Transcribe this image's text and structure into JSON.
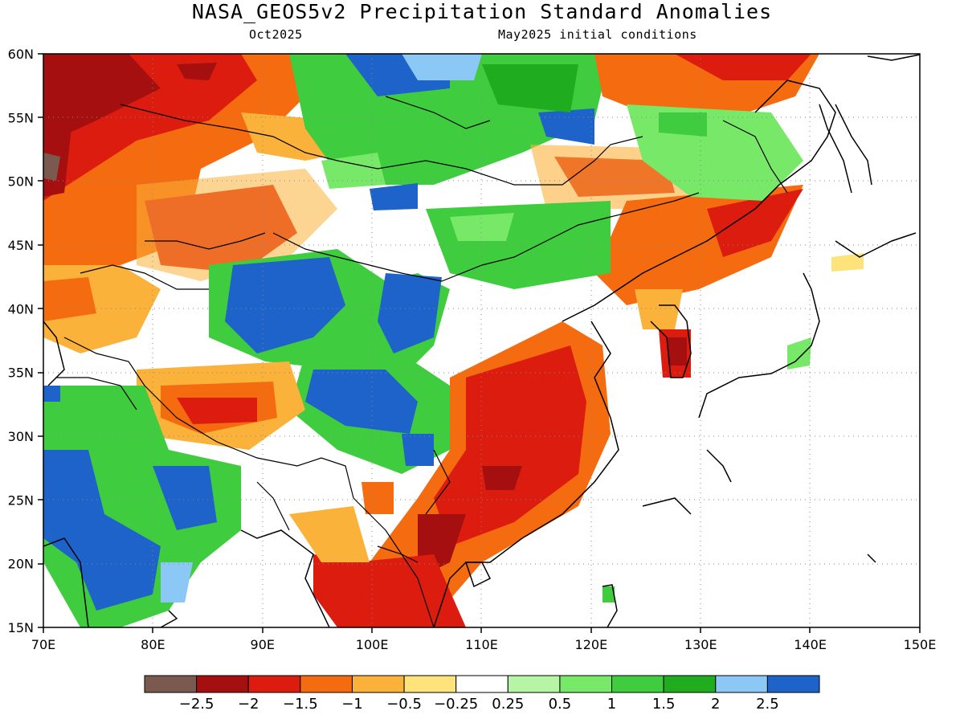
{
  "title": "NASA_GEOS5v2 Precipitation Standard Anomalies",
  "subtitle_left": "Oct2025",
  "subtitle_right": "May2025 initial conditions",
  "map": {
    "lon_range": [
      70,
      150
    ],
    "lat_range": [
      15,
      60
    ],
    "lon_ticks": [
      "70E",
      "80E",
      "90E",
      "100E",
      "110E",
      "120E",
      "130E",
      "140E",
      "150E"
    ],
    "lat_ticks": [
      "15N",
      "20N",
      "25N",
      "30N",
      "35N",
      "40N",
      "45N",
      "50N",
      "55N",
      "60N"
    ],
    "grid_lines": "dotted"
  },
  "colorbar": {
    "colors": [
      "#7a5a4e",
      "#a50f0f",
      "#dd1c10",
      "#f56b0f",
      "#fbb23a",
      "#fee27a",
      "#ffffff",
      "#b7f5a6",
      "#78e868",
      "#3fcc3f",
      "#1fad1f",
      "#8cc8f5",
      "#1e63c9"
    ],
    "labels": [
      "−2.5",
      "−2",
      "−1.5",
      "−1",
      "−0.5",
      "−0.25",
      "0.25",
      "0.5",
      "1",
      "1.5",
      "2",
      "2.5"
    ]
  }
}
